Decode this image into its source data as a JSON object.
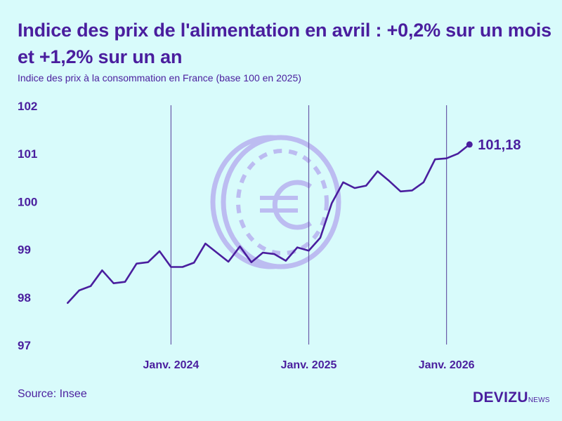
{
  "header": {
    "title": "Indice des prix de l'alimentation en avril : +0,2% sur un mois et +1,2% sur un an",
    "subtitle": "Indice des prix à la consommation en France (base 100 en 2025)"
  },
  "footer": {
    "source": "Source: Insee",
    "brand_main": "DEVIZU",
    "brand_sub": "NEWS"
  },
  "colors": {
    "background": "#d8fbfb",
    "text": "#4a1e9e",
    "line": "#4a1e9e",
    "marker_line": "#6a5aa8",
    "watermark": "#b9b6f0"
  },
  "watermark_icon": "euro-coin-icon",
  "chart_data": {
    "type": "line",
    "title": "Indice des prix de l'alimentation en avril : +0,2% sur un mois et +1,2% sur un an",
    "subtitle": "Indice des prix à la consommation en France (base 100 en 2025)",
    "xlabel": "",
    "ylabel": "",
    "ylim": [
      97,
      102
    ],
    "yticks": [
      97,
      98,
      99,
      100,
      101,
      102
    ],
    "ytick_labels": [
      "97",
      "98",
      "99",
      "100",
      "101",
      "102"
    ],
    "grid": false,
    "x_start": "2023-04",
    "x_end": "2026-04",
    "xlim": [
      "2023-03",
      "2026-08"
    ],
    "vertical_markers": [
      {
        "date": "2024-01",
        "label": "Janv. 2024"
      },
      {
        "date": "2025-01",
        "label": "Janv. 2025"
      },
      {
        "date": "2026-01",
        "label": "Janv. 2026"
      }
    ],
    "series": [
      {
        "values": [
          97.87,
          98.13,
          98.22,
          98.55,
          98.28,
          98.31,
          98.69,
          98.72,
          98.95,
          98.62,
          98.62,
          98.71,
          99.11,
          98.92,
          98.73,
          99.05,
          98.72,
          98.92,
          98.89,
          98.75,
          99.03,
          98.96,
          99.23,
          99.95,
          100.39,
          100.27,
          100.32,
          100.62,
          100.42,
          100.2,
          100.22,
          100.39,
          100.87,
          100.89,
          100.99,
          101.18
        ]
      }
    ],
    "last_value_label": "101,18"
  }
}
